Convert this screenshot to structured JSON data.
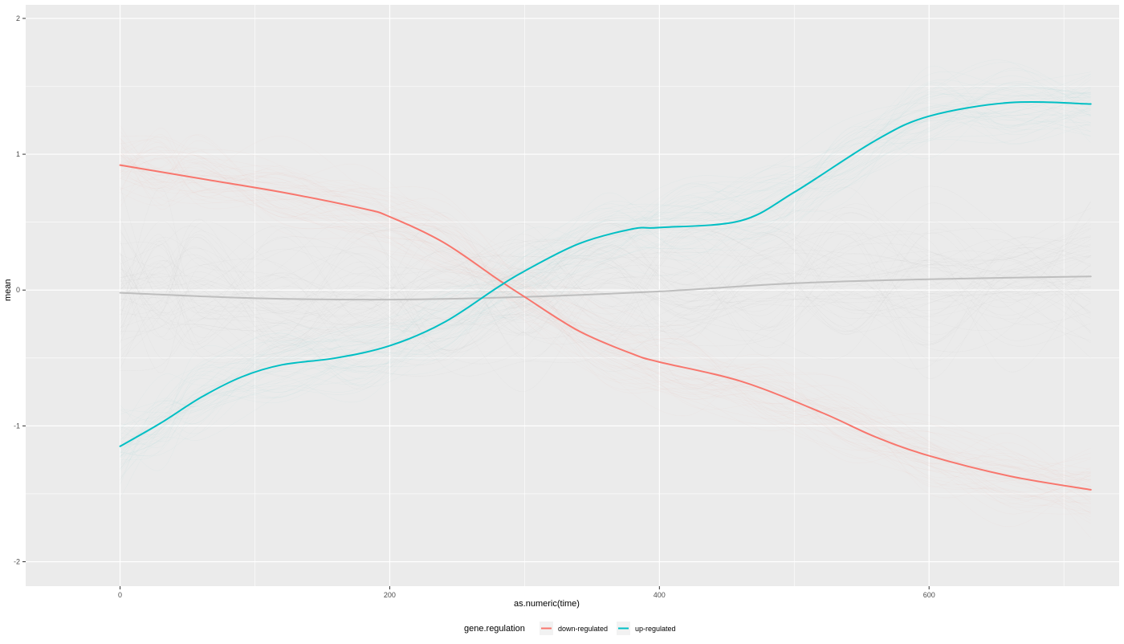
{
  "chart_data": {
    "type": "line",
    "xlabel": "as.numeric(time)",
    "ylabel": "mean",
    "xlim": [
      -70,
      741
    ],
    "ylim": [
      -2.18,
      2.1
    ],
    "x_ticks": [
      0,
      200,
      400,
      600
    ],
    "x_tick_labels": [
      "0",
      "200",
      "400",
      "600"
    ],
    "y_ticks": [
      -2,
      -1,
      0,
      1,
      2
    ],
    "y_tick_labels": [
      "-2",
      "-1",
      "0",
      "1",
      "2"
    ],
    "grid": true,
    "legend": {
      "title": "gene.regulation",
      "position": "bottom",
      "entries": [
        {
          "label": "down-regulated",
          "color": "#F8766D"
        },
        {
          "label": "up-regulated",
          "color": "#00BFC4"
        }
      ]
    },
    "colors": {
      "panel": "#EBEBEB",
      "grid": "#FFFFFF",
      "overall_trend": "#BEBEBE",
      "background_lines": "#9C9C9C"
    },
    "series": [
      {
        "name": "down-regulated",
        "color": "#F8766D",
        "x": [
          0,
          60,
          120,
          180,
          200,
          240,
          280,
          300,
          340,
          380,
          400,
          460,
          520,
          560,
          600,
          660,
          720
        ],
        "y": [
          0.92,
          0.82,
          0.72,
          0.6,
          0.54,
          0.35,
          0.08,
          -0.05,
          -0.3,
          -0.47,
          -0.53,
          -0.67,
          -0.9,
          -1.08,
          -1.22,
          -1.37,
          -1.47
        ]
      },
      {
        "name": "up-regulated",
        "color": "#00BFC4",
        "x": [
          0,
          30,
          60,
          90,
          120,
          160,
          200,
          240,
          280,
          300,
          340,
          380,
          400,
          460,
          500,
          560,
          600,
          660,
          720
        ],
        "y": [
          -1.15,
          -0.98,
          -0.79,
          -0.64,
          -0.55,
          -0.5,
          -0.41,
          -0.24,
          0.02,
          0.14,
          0.34,
          0.45,
          0.46,
          0.51,
          0.72,
          1.1,
          1.28,
          1.38,
          1.37
        ]
      },
      {
        "color": "#BEBEBE",
        "x": [
          0,
          100,
          200,
          300,
          400,
          500,
          600,
          720
        ],
        "y": [
          -0.02,
          -0.06,
          -0.07,
          -0.05,
          -0.01,
          0.05,
          0.08,
          0.1
        ]
      }
    ]
  }
}
